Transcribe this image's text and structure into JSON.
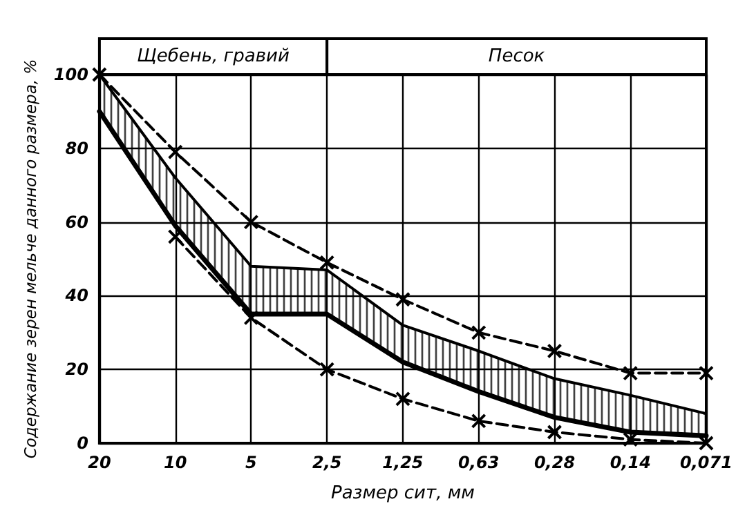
{
  "chart_data": {
    "type": "line",
    "xlabel": "Размер сит, мм",
    "ylabel": "Содержание зерен мельче данного размера, %",
    "categories": [
      "20",
      "10",
      "5",
      "2,5",
      "1,25",
      "0,63",
      "0,28",
      "0,14",
      "0,071"
    ],
    "ylim": [
      0,
      100
    ],
    "yticks": [
      0,
      20,
      40,
      60,
      80,
      100
    ],
    "grid": true,
    "annotations": [
      "Щебень, гравий",
      "Песок"
    ],
    "series": [
      {
        "color": "#000000",
        "line_style": "dashed",
        "marker": "cross",
        "values": [
          100,
          79,
          60,
          49,
          39,
          30,
          25,
          19,
          19
        ]
      },
      {
        "color": "#000000",
        "line_style": "dashed",
        "marker": "cross",
        "values": [
          null,
          56,
          34,
          20,
          12,
          6,
          3,
          1,
          0
        ]
      },
      {
        "color": "#000000",
        "values": [
          90,
          59,
          35,
          35,
          22,
          14,
          7,
          3,
          2
        ]
      },
      {
        "type": "area",
        "color": "#000000",
        "values": [
          100,
          72,
          48,
          47,
          32,
          25,
          17.5,
          13,
          8
        ]
      }
    ]
  }
}
